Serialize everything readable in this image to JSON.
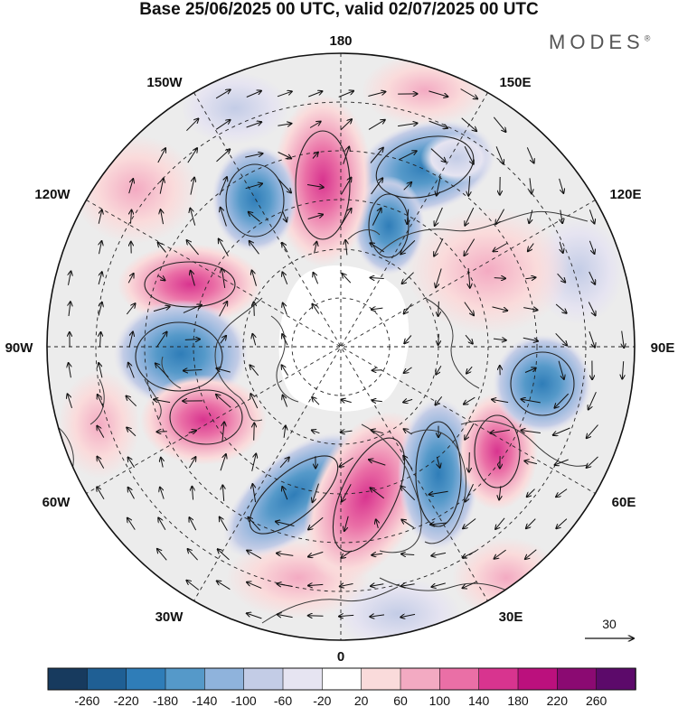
{
  "title": "Base 25/06/2025 00 UTC, valid 02/07/2025 00 UTC",
  "brand": {
    "name": "MODES",
    "mark": "®"
  },
  "longitude_labels": {
    "n180": "180",
    "w150": "150W",
    "e150": "150E",
    "w120": "120W",
    "e120": "120E",
    "w90": "90W",
    "e90": "90E",
    "w60": "60W",
    "e60": "60E",
    "w30": "30W",
    "e30": "30E",
    "s0": "0"
  },
  "vector_reference": {
    "value": "30"
  },
  "colorbar": {
    "ticks": [
      "-260",
      "-220",
      "-180",
      "-140",
      "-100",
      "-60",
      "-20",
      "20",
      "60",
      "100",
      "140",
      "180",
      "220",
      "260"
    ],
    "colors": [
      "#173a5e",
      "#1f5f94",
      "#2f7db8",
      "#5599c9",
      "#8fb3dc",
      "#c3cce6",
      "#e6e4f1",
      "#ffffff",
      "#fadbdb",
      "#f3aac2",
      "#ea6fa6",
      "#d8348f",
      "#bb107d",
      "#8b0a72",
      "#5c0a6a"
    ]
  },
  "anomaly_centers": [
    {
      "name": "e170-low",
      "sign": "negative",
      "value": -140
    },
    {
      "name": "w170-high",
      "sign": "positive",
      "value": 180
    },
    {
      "name": "w145-low",
      "sign": "negative",
      "value": -120
    },
    {
      "name": "w105-high",
      "sign": "positive",
      "value": 140
    },
    {
      "name": "w90-low",
      "sign": "negative",
      "value": -180
    },
    {
      "name": "w70-high",
      "sign": "positive",
      "value": 240
    },
    {
      "name": "w30-low",
      "sign": "negative",
      "value": -180
    },
    {
      "name": "e5-high",
      "sign": "positive",
      "value": 200
    },
    {
      "name": "e30-low",
      "sign": "negative",
      "value": -160
    },
    {
      "name": "e60-high",
      "sign": "positive",
      "value": 160
    },
    {
      "name": "e90-low",
      "sign": "negative",
      "value": -180
    },
    {
      "name": "e140-low",
      "sign": "negative",
      "value": -100
    },
    {
      "name": "e120-high",
      "sign": "positive",
      "value": 80
    }
  ]
}
